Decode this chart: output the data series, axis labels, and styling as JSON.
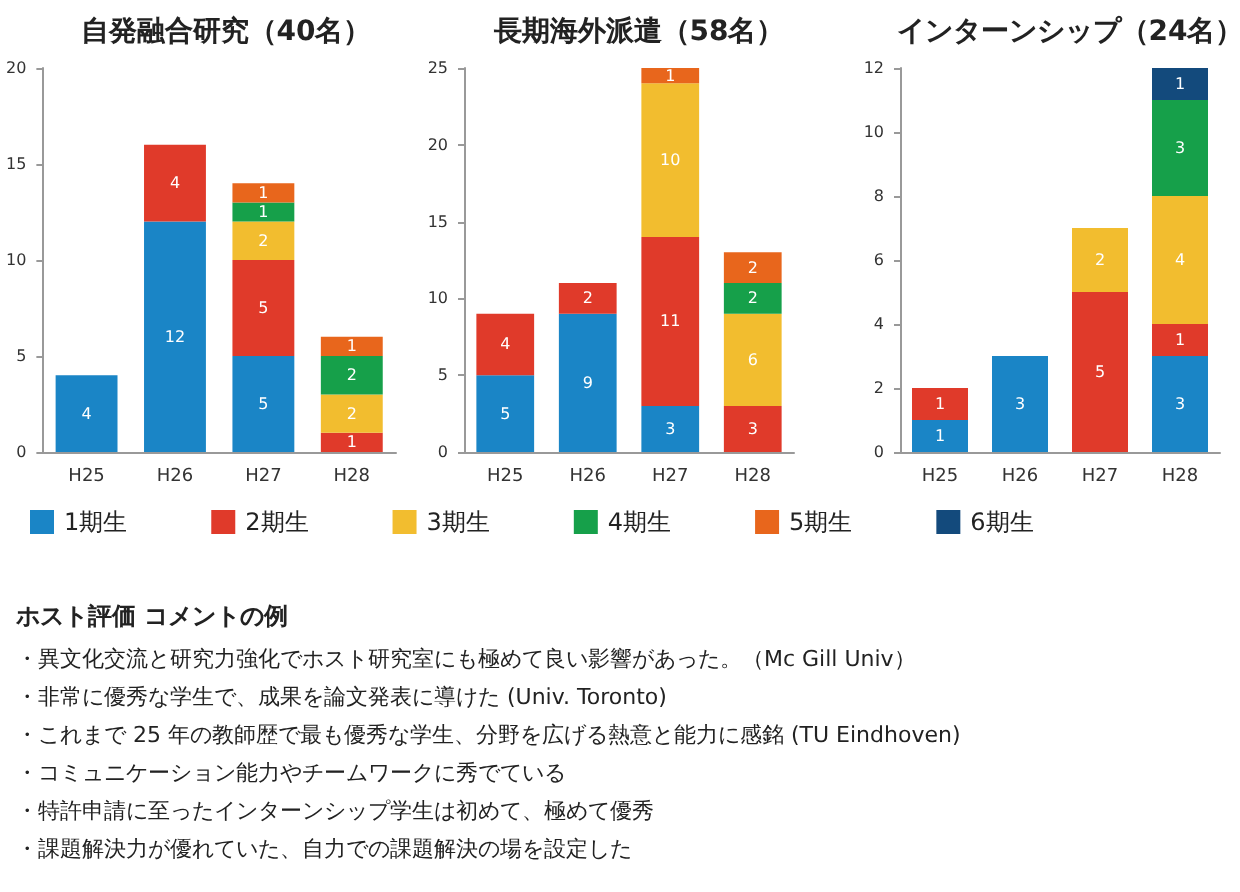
{
  "chart_data": [
    {
      "type": "bar",
      "title": "自発融合研究（40名）",
      "categories": [
        "H25",
        "H26",
        "H27",
        "H28"
      ],
      "stacked": true,
      "data_labels": true,
      "grid": false,
      "ylim": [
        0,
        20
      ],
      "yticks": [
        0,
        5,
        10,
        15,
        20
      ],
      "series": [
        {
          "color": "#1a85c6",
          "values": [
            4,
            12,
            5,
            null
          ]
        },
        {
          "color": "#e03a2a",
          "values": [
            null,
            4,
            5,
            1
          ]
        },
        {
          "color": "#f2bd2f",
          "values": [
            null,
            null,
            2,
            2
          ]
        },
        {
          "color": "#16a04a",
          "values": [
            null,
            null,
            1,
            2
          ]
        },
        {
          "color": "#e8661c",
          "values": [
            null,
            null,
            1,
            1
          ]
        }
      ],
      "annotations": [
        "ホスト評価 コメントの例",
        "・異文化交流と研究力強化でホスト研究室にも極めて良い影響があった。（Mc Gill Univ）",
        "・非常に優秀な学生で、成果を論文発表に導けた (Univ. Toronto)",
        "・これまで 25 年の教師歴で最も優秀な学生、分野を広げる熱意と能力に感銘 (TU Eindhoven)",
        "・コミュニケーション能力やチームワークに秀でている",
        "・特許申請に至ったインターンシップ学生は初めて、極めて優秀",
        "・課題解決力が優れていた、自力での課題解決の場を設定した"
      ]
    },
    {
      "type": "bar",
      "title": "長期海外派遣（58名）",
      "categories": [
        "H25",
        "H26",
        "H27",
        "H28"
      ],
      "stacked": true,
      "data_labels": true,
      "grid": false,
      "ylim": [
        0,
        25
      ],
      "yticks": [
        0,
        5,
        10,
        15,
        20,
        25
      ],
      "series": [
        {
          "color": "#1a85c6",
          "values": [
            5,
            9,
            3,
            null
          ]
        },
        {
          "color": "#e03a2a",
          "values": [
            4,
            2,
            11,
            3
          ]
        },
        {
          "color": "#f2bd2f",
          "values": [
            null,
            null,
            10,
            6
          ]
        },
        {
          "color": "#16a04a",
          "values": [
            null,
            null,
            null,
            2
          ]
        },
        {
          "color": "#e8661c",
          "values": [
            null,
            null,
            1,
            2
          ]
        }
      ]
    },
    {
      "type": "bar",
      "title": "インターンシップ（24名）",
      "categories": [
        "H25",
        "H26",
        "H27",
        "H28"
      ],
      "stacked": true,
      "data_labels": true,
      "grid": false,
      "ylim": [
        0,
        12
      ],
      "yticks": [
        0,
        2,
        4,
        6,
        8,
        10,
        12
      ],
      "legend": "bottom",
      "series": [
        {
          "name": "1期生",
          "color": "#1a85c6",
          "values": [
            1,
            3,
            null,
            3
          ]
        },
        {
          "name": "2期生",
          "color": "#e03a2a",
          "values": [
            1,
            null,
            5,
            1
          ]
        },
        {
          "name": "3期生",
          "color": "#f2bd2f",
          "values": [
            null,
            null,
            2,
            4
          ]
        },
        {
          "name": "4期生",
          "color": "#16a04a",
          "values": [
            null,
            null,
            null,
            3
          ]
        },
        {
          "name": "5期生",
          "color": "#e8661c",
          "values": [
            null,
            null,
            null,
            null
          ]
        },
        {
          "name": "6期生",
          "color": "#134a7c",
          "values": [
            null,
            null,
            null,
            1
          ]
        }
      ]
    }
  ]
}
